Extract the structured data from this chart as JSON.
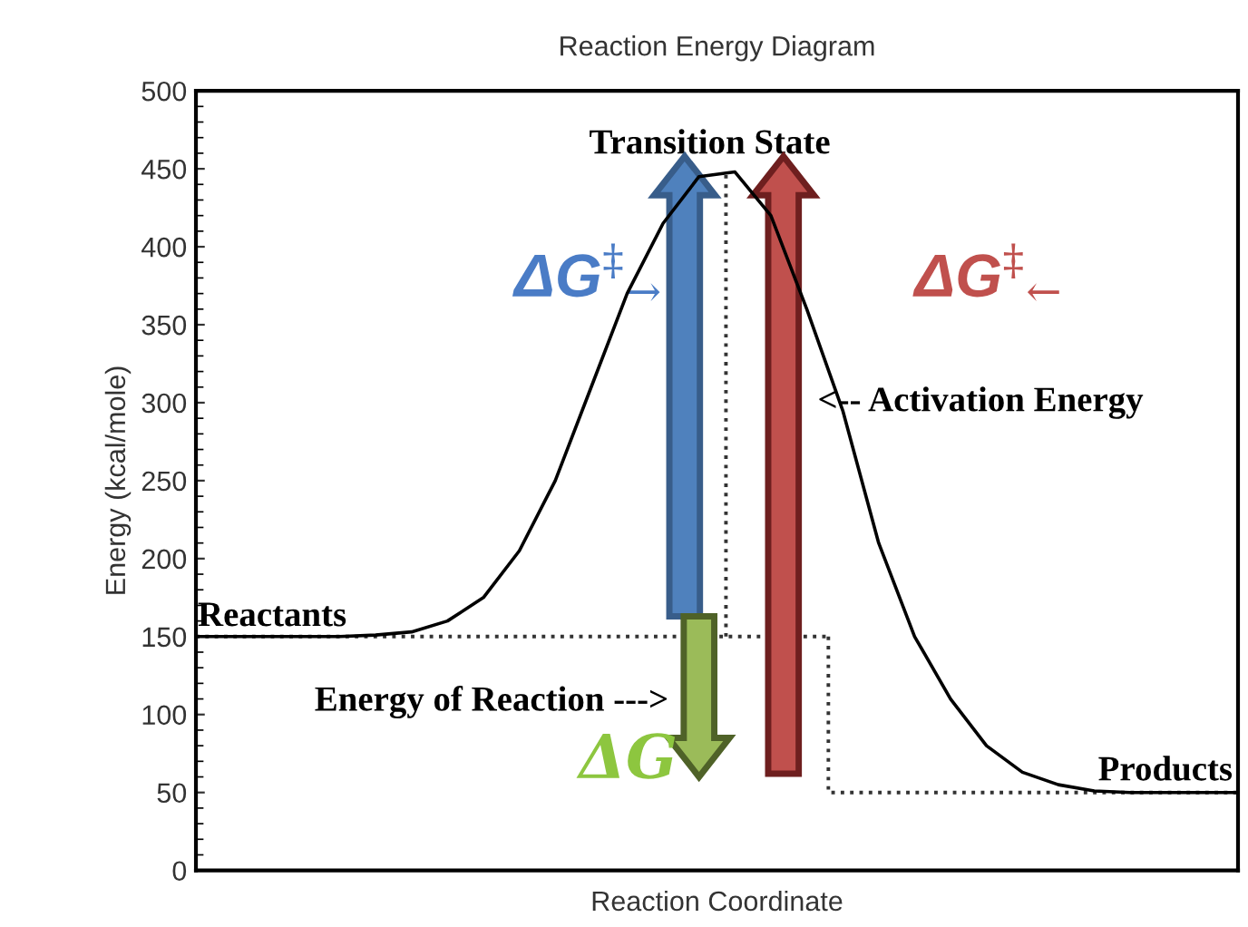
{
  "chart_data": {
    "type": "line",
    "title": "Reaction Energy Diagram",
    "xlabel": "Reaction Coordinate",
    "ylabel": "Energy (kcal/mole)",
    "categories": [
      null,
      null,
      null,
      null,
      null,
      null,
      null,
      null,
      null,
      null,
      null,
      null,
      null,
      null,
      null,
      null,
      null,
      null,
      null,
      null,
      null,
      null,
      null,
      null,
      null,
      null,
      null,
      null,
      null,
      null
    ],
    "series": [
      {
        "color": "#000000",
        "values": [
          150,
          150,
          150,
          150,
          150,
          151,
          153,
          160,
          175,
          205,
          250,
          310,
          370,
          415,
          445,
          448,
          420,
          360,
          295,
          210,
          150,
          110,
          80,
          63,
          55,
          51,
          50,
          50,
          50,
          50
        ]
      }
    ],
    "ref_lines": [
      {
        "axis": "y",
        "value": 150,
        "color": "#333333",
        "line_style": "dotted"
      },
      {
        "axis": "y",
        "value": 50,
        "color": "#333333",
        "line_style": "dotted"
      }
    ],
    "ylim": [
      0,
      500
    ],
    "yticks": [
      0,
      50,
      100,
      150,
      200,
      250,
      300,
      350,
      400,
      450,
      500
    ],
    "tick_labels": "y",
    "grid": false,
    "legend": false,
    "marker": "none",
    "line_style": "solid",
    "annotations": [
      "Transition State",
      "Reactants",
      "Products",
      "<-- Activation Energy",
      "Energy of Reaction --->",
      "ΔG$^{‡}$$_{→}$",
      "ΔG$^{‡}$$_{←}$",
      "ΔG"
    ]
  }
}
